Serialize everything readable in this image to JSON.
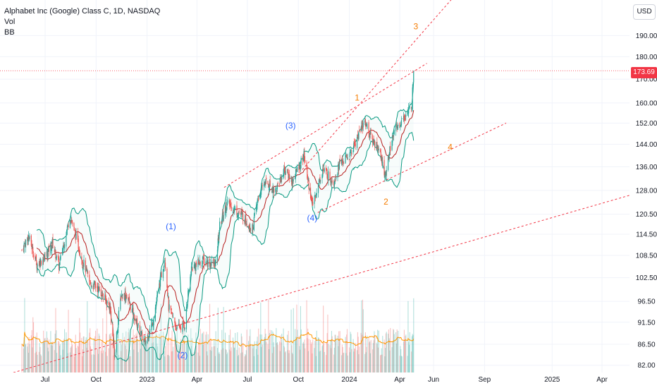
{
  "header": {
    "title": "Alphabet Inc (Google) Class C, 1D, NASDAQ",
    "indicators": [
      "Vol",
      "BB"
    ]
  },
  "price_axis": {
    "unit_button": "USD",
    "current_price": "173.69"
  },
  "colors": {
    "background": "#ffffff",
    "up_candle": "#26a69a",
    "down_candle": "#ef5350",
    "bb_band": "#089981",
    "bb_basis": "#b71c1c",
    "vol_ma": "#ff9800",
    "trendline": "#f23645",
    "wave_major": "#2962ff",
    "wave_minor": "#f57c00",
    "axis_text": "#131722",
    "grid": "#f0f3fa",
    "current_price": "#f23645"
  },
  "chart_data": {
    "type": "candlestick",
    "title": "Alphabet Inc (Google) Class C, 1D, NASDAQ",
    "x_ticks": [
      "Jul",
      "Oct",
      "2023",
      "Apr",
      "Jul",
      "Oct",
      "2024",
      "Apr",
      "Jun",
      "Sep",
      "2025",
      "Apr"
    ],
    "y_ticks": [
      190.0,
      180.0,
      170.0,
      160.0,
      152.0,
      144.0,
      136.0,
      128.0,
      120.5,
      114.5,
      108.5,
      102.5,
      96.5,
      91.5,
      86.5,
      82.0
    ],
    "y_scale": "log",
    "ylim": [
      80.5,
      208
    ],
    "current_price": 173.69,
    "grid": true,
    "close_path": [
      [
        "2022-05-20",
        110.0
      ],
      [
        "2022-06-01",
        114.0
      ],
      [
        "2022-06-16",
        106.0
      ],
      [
        "2022-07-01",
        108.0
      ],
      [
        "2022-07-14",
        112.0
      ],
      [
        "2022-07-26",
        105.5
      ],
      [
        "2022-08-15",
        120.0
      ],
      [
        "2022-09-01",
        110.0
      ],
      [
        "2022-09-20",
        101.0
      ],
      [
        "2022-10-03",
        100.0
      ],
      [
        "2022-10-13",
        98.0
      ],
      [
        "2022-10-26",
        95.0
      ],
      [
        "2022-11-03",
        84.0
      ],
      [
        "2022-11-15",
        98.0
      ],
      [
        "2022-11-25",
        98.0
      ],
      [
        "2022-12-08",
        93.0
      ],
      [
        "2022-12-28",
        86.5
      ],
      [
        "2023-01-12",
        92.0
      ],
      [
        "2023-02-02",
        108.0
      ],
      [
        "2023-02-09",
        95.0
      ],
      [
        "2023-02-24",
        90.0
      ],
      [
        "2023-03-10",
        91.0
      ],
      [
        "2023-03-22",
        105.0
      ],
      [
        "2023-04-10",
        107.0
      ],
      [
        "2023-05-05",
        106.0
      ],
      [
        "2023-05-12",
        117.0
      ],
      [
        "2023-05-25",
        124.0
      ],
      [
        "2023-06-08",
        122.0
      ],
      [
        "2023-06-22",
        120.0
      ],
      [
        "2023-07-10",
        116.0
      ],
      [
        "2023-07-20",
        125.0
      ],
      [
        "2023-08-01",
        131.0
      ],
      [
        "2023-08-21",
        128.0
      ],
      [
        "2023-09-06",
        135.0
      ],
      [
        "2023-09-20",
        131.0
      ],
      [
        "2023-10-11",
        140.0
      ],
      [
        "2023-10-26",
        123.0
      ],
      [
        "2023-11-14",
        135.0
      ],
      [
        "2023-12-04",
        131.0
      ],
      [
        "2023-12-14",
        137.0
      ],
      [
        "2024-01-02",
        140.0
      ],
      [
        "2024-01-29",
        153.0
      ],
      [
        "2024-02-08",
        147.0
      ],
      [
        "2024-02-22",
        143.0
      ],
      [
        "2024-03-06",
        133.0
      ],
      [
        "2024-03-20",
        148.0
      ],
      [
        "2024-04-05",
        153.0
      ],
      [
        "2024-04-18",
        157.0
      ],
      [
        "2024-04-23",
        160.0
      ],
      [
        "2024-04-26",
        173.69
      ]
    ],
    "bollinger_bands": true,
    "volume": true,
    "trendlines": [
      {
        "from": [
          "2022-04-20",
          80.0
        ],
        "to": [
          "2025-06-20",
          128.0
        ]
      },
      {
        "from": [
          "2023-05-20",
          129.0
        ],
        "to": [
          "2024-05-20",
          177.0
        ]
      },
      {
        "from": [
          "2023-10-08",
          135.0
        ],
        "to": [
          "2024-07-20",
          214.0
        ]
      },
      {
        "from": [
          "2023-11-05",
          121.0
        ],
        "to": [
          "2024-10-10",
          152.0
        ]
      }
    ],
    "annotations": [
      {
        "text": "(1)",
        "x": "2023-02-13",
        "y": 116.0,
        "group": "major"
      },
      {
        "text": "(2)",
        "x": "2023-03-06",
        "y": 83.5,
        "group": "major"
      },
      {
        "text": "(3)",
        "x": "2023-09-17",
        "y": 150.0,
        "group": "major"
      },
      {
        "text": "(4)",
        "x": "2023-10-26",
        "y": 118.5,
        "group": "major"
      },
      {
        "text": "1",
        "x": "2024-01-15",
        "y": 161.0,
        "group": "minor"
      },
      {
        "text": "2",
        "x": "2024-03-07",
        "y": 123.5,
        "group": "minor"
      },
      {
        "text": "3",
        "x": "2024-04-30",
        "y": 193.0,
        "group": "minor"
      },
      {
        "text": "4",
        "x": "2024-07-01",
        "y": 142.0,
        "group": "minor"
      }
    ]
  }
}
